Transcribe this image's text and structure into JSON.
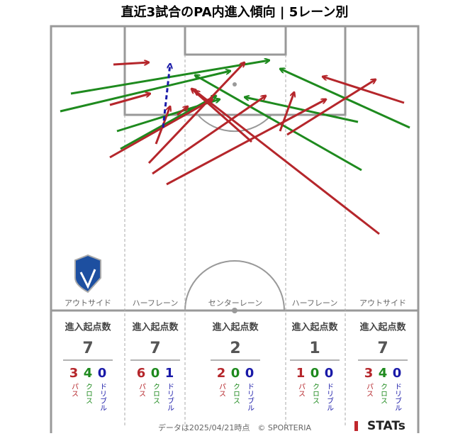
{
  "header": {
    "title": "直近3試合のPA内進入傾向 | 5レーン別"
  },
  "lanes": [
    {
      "name": "アウトサイド",
      "heading": "進入起点数",
      "total": 7,
      "counts": [
        {
          "value": 3,
          "label": "パス"
        },
        {
          "value": 4,
          "label": "クロス"
        },
        {
          "value": 0,
          "label": "ドリブル"
        }
      ]
    },
    {
      "name": "ハーフレーン",
      "heading": "進入起点数",
      "total": 7,
      "counts": [
        {
          "value": 6,
          "label": "パス"
        },
        {
          "value": 0,
          "label": "クロス"
        },
        {
          "value": 1,
          "label": "ドリブル"
        }
      ]
    },
    {
      "name": "センターレーン",
      "heading": "進入起点数",
      "total": 2,
      "counts": [
        {
          "value": 2,
          "label": "パス"
        },
        {
          "value": 0,
          "label": "クロス"
        },
        {
          "value": 0,
          "label": "ドリブル"
        }
      ]
    },
    {
      "name": "ハーフレーン",
      "heading": "進入起点数",
      "total": 1,
      "counts": [
        {
          "value": 1,
          "label": "パス"
        },
        {
          "value": 0,
          "label": "クロス"
        },
        {
          "value": 0,
          "label": "ドリブル"
        }
      ]
    },
    {
      "name": "アウトサイド",
      "heading": "進入起点数",
      "total": 7,
      "counts": [
        {
          "value": 3,
          "label": "パス"
        },
        {
          "value": 4,
          "label": "クロス"
        },
        {
          "value": 0,
          "label": "ドリブル"
        }
      ]
    }
  ],
  "footer": {
    "note": "データは2025/04/21時点　© SPORTERIA",
    "brand": "STATs"
  }
}
